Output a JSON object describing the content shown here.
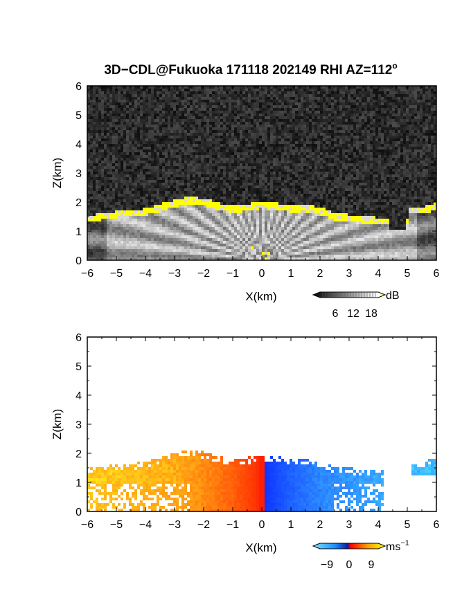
{
  "title": "3D−CDL@Fukuoka 171118 202149 RHI AZ=112",
  "title_sup": "o",
  "panels": [
    {
      "id": "intensity",
      "xlabel": "X(km)",
      "ylabel": "Z(km)",
      "colorbar": {
        "unit": "dB",
        "tick_labels": [
          "6",
          "12",
          "18"
        ]
      }
    },
    {
      "id": "velocity",
      "xlabel": "X(km)",
      "ylabel": "Z(km)",
      "colorbar": {
        "unit": "ms",
        "unit_sup": "−1",
        "tick_labels": [
          "−9",
          "0",
          "9"
        ]
      }
    }
  ],
  "chart_data": [
    {
      "type": "heatmap",
      "title": "3D−CDL@Fukuoka 171118 202149 RHI AZ=112°",
      "xlabel": "X(km)",
      "ylabel": "Z(km)",
      "xlim": [
        -6,
        6
      ],
      "ylim": [
        0,
        6
      ],
      "x_ticks": [
        -6,
        -5,
        -4,
        -3,
        -2,
        -1,
        0,
        1,
        2,
        3,
        4,
        5,
        6
      ],
      "y_ticks": [
        0,
        1,
        2,
        3,
        4,
        5,
        6
      ],
      "colorbar": {
        "unit": "dB",
        "ticks": [
          6,
          12,
          18
        ],
        "colormap": "grayscale-yellow"
      },
      "boundary_layer_top_km": {
        "x": [
          -6,
          -5.5,
          -5,
          -4.5,
          -4,
          -3.5,
          -3,
          -2.5,
          -2,
          -1.5,
          -1,
          -0.5,
          0,
          0.5,
          1,
          1.5,
          2,
          2.5,
          3,
          3.5,
          4,
          4.5,
          5,
          5.5,
          6
        ],
        "z": [
          1.4,
          1.5,
          1.55,
          1.6,
          1.65,
          1.8,
          1.95,
          2.05,
          2.0,
          1.85,
          1.75,
          1.8,
          1.9,
          1.85,
          1.75,
          1.8,
          1.7,
          1.5,
          1.45,
          1.4,
          1.35,
          1.3,
          null,
          1.7,
          1.85
        ]
      },
      "colors": {
        "high_signal": "#ffff00",
        "background": "#1e1e1e"
      }
    },
    {
      "type": "heatmap",
      "xlabel": "X(km)",
      "ylabel": "Z(km)",
      "xlim": [
        -6,
        6
      ],
      "ylim": [
        0,
        6
      ],
      "x_ticks": [
        -6,
        -5,
        -4,
        -3,
        -2,
        -1,
        0,
        1,
        2,
        3,
        4,
        5,
        6
      ],
      "y_ticks": [
        0,
        1,
        2,
        3,
        4,
        5,
        6
      ],
      "colorbar": {
        "unit": "ms−1",
        "ticks": [
          -9,
          0,
          9
        ],
        "colormap": "blue-red-yellow"
      },
      "radial_velocity_ms": {
        "x": [
          -6,
          -5,
          -4,
          -3,
          -2,
          -1,
          -0.2,
          0.2,
          1,
          2,
          3,
          4,
          5,
          6
        ],
        "v": [
          8,
          7.5,
          7,
          6.5,
          5,
          3,
          1,
          -1,
          -3,
          -5,
          -6,
          -7,
          -8,
          -8
        ]
      },
      "colors": {
        "negative": "#1e90ff",
        "zero": "#ff0000",
        "positive": "#ffd700"
      }
    }
  ]
}
